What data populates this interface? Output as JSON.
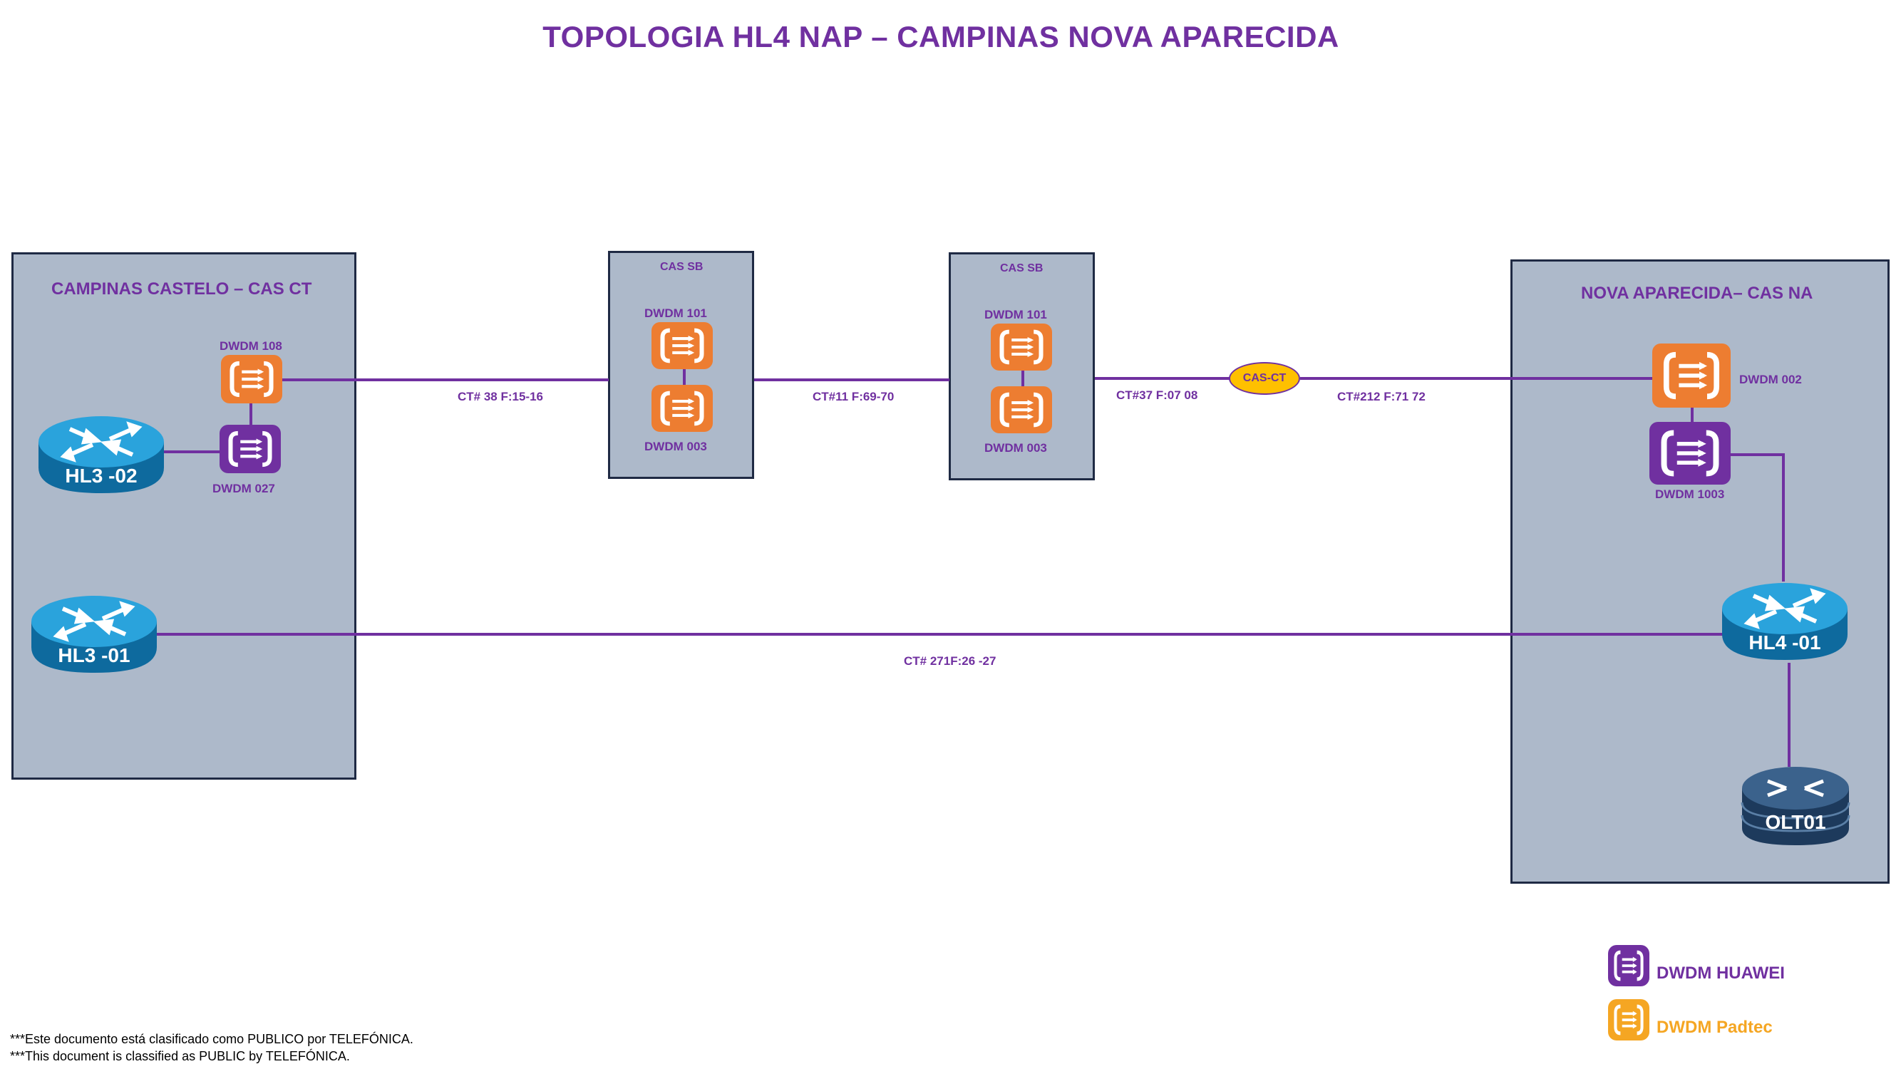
{
  "title": "TOPOLOGIA HL4 NAP – CAMPINAS NOVA APARECIDA",
  "sites": {
    "campinas": "CAMPINAS CASTELO – CAS CT",
    "sb1": "CAS SB",
    "sb2": "CAS SB",
    "nova": "NOVA APARECIDA– CAS NA"
  },
  "devices": {
    "ct_dwdm_108": "DWDM 108",
    "ct_dwdm_027": "DWDM 027",
    "sb1_dwdm_101": "DWDM 101",
    "sb1_dwdm_003": "DWDM 003",
    "sb2_dwdm_101": "DWDM 101",
    "sb2_dwdm_003": "DWDM 003",
    "na_dwdm_002": "DWDM 002",
    "na_dwdm_1003": "DWDM 1003",
    "hl3_02": "HL3 -02",
    "hl3_01": "HL3 -01",
    "hl4_01": "HL4 -01",
    "olt01": "OLT01"
  },
  "links": {
    "ct38": "CT# 38 F:15-16",
    "ct11": "CT#11  F:69-70",
    "ct37": "CT#37 F:07  08",
    "ct212": "CT#212 F:71 72",
    "ct271": "CT# 271F:26 -27"
  },
  "cas_ct_node": "CAS-CT",
  "legend": {
    "huawei": "DWDM HUAWEI",
    "padtec": "DWDM Padtec"
  },
  "footer": {
    "line1": "***Este documento está clasificado como PUBLICO por TELEFÓNICA.",
    "line2": "***This document is classified as PUBLIC by TELEFÓNICA."
  },
  "colors": {
    "huawei": "#7030a0",
    "padtec": "#ed7d31",
    "padtec_legend": "#f5a623",
    "box": "#adb9ca",
    "router": "#1f8fc8",
    "olt": "#2a4b6e",
    "link": "#7030a0"
  },
  "icons": {
    "dwdm": "dwdm-mux-icon",
    "router": "router-icon",
    "olt": "olt-switch-icon"
  }
}
